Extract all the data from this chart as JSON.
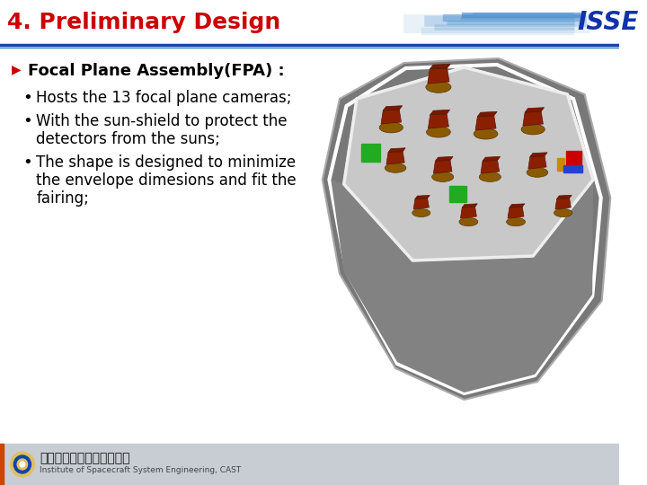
{
  "title": "4. Preliminary Design",
  "title_color": "#CC0000",
  "title_fontsize": 18,
  "bg_color": "#FFFFFF",
  "footer_bg": "#C8CDD4",
  "header_line_color1": "#1144AA",
  "header_line_color2": "#4488CC",
  "section_header": "Focal Plane Assembly(FPA) :",
  "section_header_fontsize": 13,
  "bullet_points": [
    "Hosts the 13 focal plane cameras;",
    "With the sun-shield to protect the\ndetectors from the suns;",
    "The shape is designed to minimize\nthe envelope dimesions and fit the\nfairing;"
  ],
  "bullet_fontsize": 12,
  "arrow_color": "#CC0000",
  "footer_text_cn": "中国空间技术研究院总体部",
  "footer_text_en": "Institute of Spacecraft System Engineering, CAST",
  "isse_color": "#1133AA",
  "fpa_outer_color": "#787878",
  "fpa_floor_color": "#C8C8C8",
  "fpa_floor_edge": "#FFFFFF",
  "camera_base_color": "#8B5A00",
  "camera_top_color": "#8B2000",
  "camera_highlight": "#CC3300",
  "green_color": "#22AA22",
  "red_marker": "#CC0000",
  "blue_marker": "#2244CC",
  "gold_marker": "#CC8800"
}
